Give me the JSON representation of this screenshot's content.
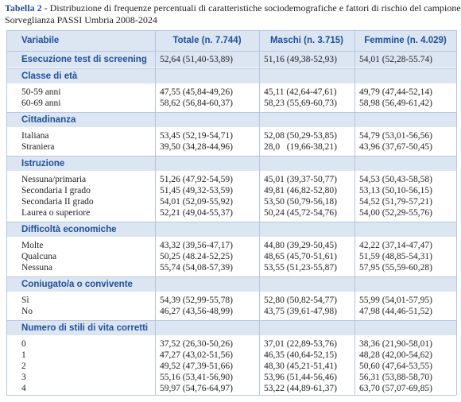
{
  "caption": {
    "label": "Tabella 2",
    "text": "- Distribuzione di frequenze percentuali di caratteristiche sociodemografiche e fattori di rischio del campione.",
    "subtitle": "Sorveglianza PASSI Umbria 2008-2024"
  },
  "table": {
    "header": [
      "Variabile",
      "Totale (n. 7.744)",
      "Maschi (n. 3.715)",
      "Femmine (n. 4.029)"
    ],
    "sections": [
      {
        "title": "Esecuzione test di screening",
        "values": [
          "52,64 (51,40-53,89)",
          "51,16 (49,38-52,93)",
          "54,01 (52,28-55.74)"
        ],
        "rows": []
      },
      {
        "title": "Classe di età",
        "rows": [
          [
            "50-59 anni",
            "47,55 (45,84-49,26)",
            "45,11 (42,64-47,61)",
            "49,79 (47,44-52,14)"
          ],
          [
            "60-69 anni",
            "58,62 (56,84-60,37)",
            "58,23 (55,69-60,73)",
            "58,98 (56,49-61,42)"
          ]
        ]
      },
      {
        "title": "Cittadinanza",
        "rows": [
          [
            "Italiana",
            "53,45 (52,19-54,71)",
            "52,08 (50,29-53,85)",
            "54,79 (53,01-56,56)"
          ],
          [
            "Straniera",
            "39,50 (34,28-44,96)",
            "28,0   (19,66-38,21)",
            "43,96 (37,67-50,45)"
          ]
        ]
      },
      {
        "title": "Istruzione",
        "rows": [
          [
            "Nessuna/primaria",
            "51,26 (47,92-54,59)",
            "45,01 (39,37-50,77)",
            "54,53 (50,43-58,58)"
          ],
          [
            "Secondaria I grado",
            "51,45 (49,32-53,59)",
            "49,81 (46,82-52,80)",
            "53,13 (50,10-56,15)"
          ],
          [
            "Secondaria II grado",
            "54,01 (52,09-55,92)",
            "53,50 (50,79-56,18)",
            "54,52 (51,79-57,21)"
          ],
          [
            "Laurea o superiore",
            "52,21 (49,04-55,37)",
            "50,24 (45,72-54,76)",
            "54,00 (52,29-55,76)"
          ]
        ]
      },
      {
        "title": "Difficoltà economiche",
        "rows": [
          [
            "Molte",
            "43,32 (39,56-47,17)",
            "44,80 (39,29-50,45)",
            "42,22 (37,14-47,47)"
          ],
          [
            "Qualcuna",
            "50,25 (48.24-52,25)",
            "48,65 (45,70-51,61)",
            "51,59 (48,85-54,31)"
          ],
          [
            "Nessuna",
            "55,74 (54,08-57,39)",
            "53,55 (51,23-55,87)",
            "57,95 (55,59-60,28)"
          ]
        ]
      },
      {
        "title": "Coniugato/a o convivente",
        "rows": [
          [
            "Sì",
            "54,39 (52,99-55,78)",
            "52,80 (50,82-54,77)",
            "55,99 (54,01-57,95)"
          ],
          [
            "No",
            "46,27 (43,56-48,99)",
            "43,75 (39,61-47,98)",
            "47,98 (44,46-51,52)"
          ]
        ]
      },
      {
        "title": "Numero di stili di vita corretti",
        "rows": [
          [
            "0",
            "37,52 (26,30-50,26)",
            "37,01 (22,89-53,76)",
            "38,36 (21,90-58,01)"
          ],
          [
            "1",
            "47,27 (43,02-51,56)",
            "46,35 (40,64-52,15)",
            "48,28 (42,00-54,62)"
          ],
          [
            "2",
            "49,52 (47,39-51,66)",
            "48,30 (45,21-51,41)",
            "50,60 (47,64-53,55)"
          ],
          [
            "3",
            "55,16 (53,41-56,90)",
            "53,96 (51,44-56,46)",
            "56,31 (53,88-58,70)"
          ],
          [
            "4",
            "59,97 (54,76-64,97)",
            "53,22 (44,89-61,37)",
            "63,70 (57,07-69,85)"
          ]
        ]
      }
    ]
  }
}
